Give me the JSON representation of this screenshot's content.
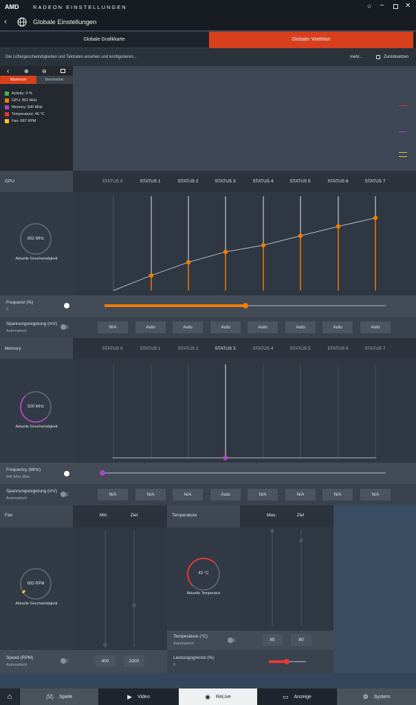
{
  "app": {
    "brand": "AMD",
    "title": "RADEON EINSTELLUNGEN"
  },
  "header": {
    "title": "Globale Einstellungen"
  },
  "tabs": [
    {
      "label": "Globale Grafikkarte"
    },
    {
      "label": "Globaler WattMan"
    }
  ],
  "info": {
    "text": "Die Lüftergeschwindigkeiten und Taktraten ansehen und konfigurieren...",
    "more": "mehr...",
    "reset": "Zurücksetzen"
  },
  "monitor": {
    "mode_max": "Maximum",
    "mode_avg": "Durchschn.",
    "legend": [
      {
        "text": "Activity: 0 %",
        "color": "#4caf50"
      },
      {
        "text": "GPU: 852 MHz",
        "color": "#f57c00"
      },
      {
        "text": "Memory: 500 MHz",
        "color": "#ab47bc"
      },
      {
        "text": "Temperature: 46 °C",
        "color": "#e53935"
      },
      {
        "text": "Fan: 687 RPM",
        "color": "#fbc02d"
      }
    ]
  },
  "gpu": {
    "title": "GPU",
    "speed": "852 MHz",
    "speed_label": "Aktuelle Geschwindigkeit",
    "states": [
      "STATUS 0",
      "STATUS 1",
      "STATUS 2",
      "STATUS 3",
      "STATUS 4",
      "STATUS 5",
      "STATUS 6",
      "STATUS 7"
    ],
    "freq_label": "Frequenz (%)",
    "freq_value": "0",
    "freq_fraction": 0.5,
    "volt_label": "Spannungsregelung (mV)",
    "volt_sub": "Automatisch",
    "volts": [
      "N/A",
      "Auto",
      "Auto",
      "Auto",
      "Auto",
      "Auto",
      "Auto",
      "Auto"
    ],
    "curve": [
      0.0,
      0.16,
      0.3,
      0.41,
      0.48,
      0.58,
      0.68,
      0.77
    ],
    "active": [
      false,
      true,
      true,
      true,
      true,
      true,
      true,
      true
    ]
  },
  "memory": {
    "title": "Memory",
    "speed": "500 MHz",
    "speed_label": "Aktuelle Geschwindigkeit",
    "states": [
      "STATUS 0",
      "STATUS 1",
      "STATUS 2",
      "STATUS 3",
      "STATUS 4",
      "STATUS 5",
      "STATUS 6",
      "STATUS 7"
    ],
    "freq_label": "Frequency (MHz)",
    "freq_value": "945 MHz Max.",
    "volt_label": "Spannungsregelung (mV)",
    "volt_sub": "Automatisch",
    "volts": [
      "N/A",
      "N/A",
      "N/A",
      "Auto",
      "N/A",
      "N/A",
      "N/A",
      "N/A"
    ],
    "active_state": 3
  },
  "fan": {
    "title": "Fan",
    "col_min": "Min.",
    "col_target": "Ziel",
    "speed": "683 RPM",
    "speed_label": "Aktuelle Geschwindigkeit",
    "speed_row": "Speed (RPM)",
    "speed_sub": "Automatisch",
    "min": "400",
    "target": "2000"
  },
  "temperature": {
    "title": "Temperature",
    "col_max": "Max.",
    "col_target": "Ziel",
    "value": "43 °C",
    "value_label": "Aktuelle Temperatur",
    "row_label": "Temperature (°C)",
    "row_sub": "Automatisch",
    "max": "85",
    "target": "80",
    "power_label": "Leistungsgrenze (%)",
    "power_value": "0"
  },
  "nav": [
    {
      "label": "Spiele"
    },
    {
      "label": "Video"
    },
    {
      "label": "ReLive"
    },
    {
      "label": "Anzeige"
    },
    {
      "label": "System"
    }
  ]
}
